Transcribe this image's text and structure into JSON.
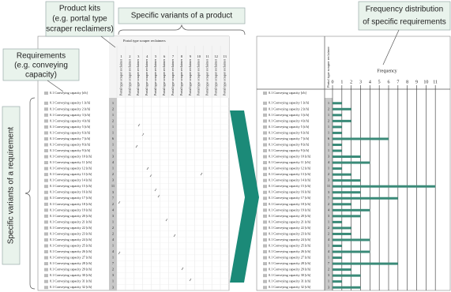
{
  "callouts": {
    "product_kits": [
      "Product kits",
      "(e.g. portal type",
      "scraper reclaimers)"
    ],
    "product_variants": "Specific variants of a product",
    "requirements": [
      "Requirements",
      "(e.g. conveying",
      "capacity)"
    ],
    "requirement_variants": "Specific variants of a requirement",
    "frequency_distribution": [
      "Frequency distribution",
      "of specific requirements"
    ]
  },
  "matrix": {
    "header": "Portal type scraper reclaimers",
    "column_label": "Portal type scraper reclaimer",
    "columns": [
      1,
      2,
      3,
      4,
      5,
      6,
      7,
      8,
      9,
      10,
      11,
      12,
      13
    ],
    "requirement": "0.1 Conveying capacity [t/h]",
    "rows": [
      "0.1 Conveying capacity 1 [t/h]",
      "0.1 Conveying capacity 2 [t/h]",
      "0.1 Conveying capacity 3 [t/h]",
      "0.1 Conveying capacity 4 [t/h]",
      "0.1 Conveying capacity 5 [t/h]",
      "0.1 Conveying capacity 6 [t/h]",
      "0.1 Conveying capacity 7 [t/h]",
      "0.1 Conveying capacity 8 [t/h]",
      "0.1 Conveying capacity 9 [t/h]",
      "0.1 Conveying capacity 10 [t/h]",
      "0.1 Conveying capacity 11 [t/h]",
      "0.1 Conveying capacity 12 [t/h]",
      "0.1 Conveying capacity 13 [t/h]",
      "0.1 Conveying capacity 14 [t/h]",
      "0.1 Conveying capacity 15 [t/h]",
      "0.1 Conveying capacity 16 [t/h]",
      "0.1 Conveying capacity 17 [t/h]",
      "0.1 Conveying capacity 18 [t/h]",
      "0.1 Conveying capacity 19 [t/h]",
      "0.1 Conveying capacity 20 [t/h]",
      "0.1 Conveying capacity 21 [t/h]",
      "0.1 Conveying capacity 22 [t/h]",
      "0.1 Conveying capacity 23 [t/h]",
      "0.1 Conveying capacity 24 [t/h]",
      "0.1 Conveying capacity 25 [t/h]",
      "0.1 Conveying capacity 26 [t/h]",
      "0.1 Conveying capacity 27 [t/h]",
      "0.1 Conveying capacity 28 [t/h]",
      "0.1 Conveying capacity 29 [t/h]",
      "0.1 Conveying capacity 30 [t/h]",
      "0.1 Conveying capacity 31 [t/h]",
      "0.1 Conveying capacity 32 [t/h]"
    ]
  },
  "frequency": {
    "title": "Frequency",
    "column_header": "Portal type scraper reclaimer",
    "values": [
      1,
      2,
      1,
      2,
      1,
      1,
      6,
      1,
      1,
      3,
      4,
      1,
      2,
      3,
      11,
      3,
      7,
      2,
      4,
      3,
      1,
      2,
      2,
      4,
      1,
      4,
      1,
      7,
      2,
      3,
      1,
      3
    ],
    "color": "#3a8a78",
    "xlim": [
      0,
      12
    ],
    "xticks": [
      0,
      1,
      2,
      3,
      4,
      5,
      6,
      7,
      8,
      9,
      10,
      11
    ]
  }
}
